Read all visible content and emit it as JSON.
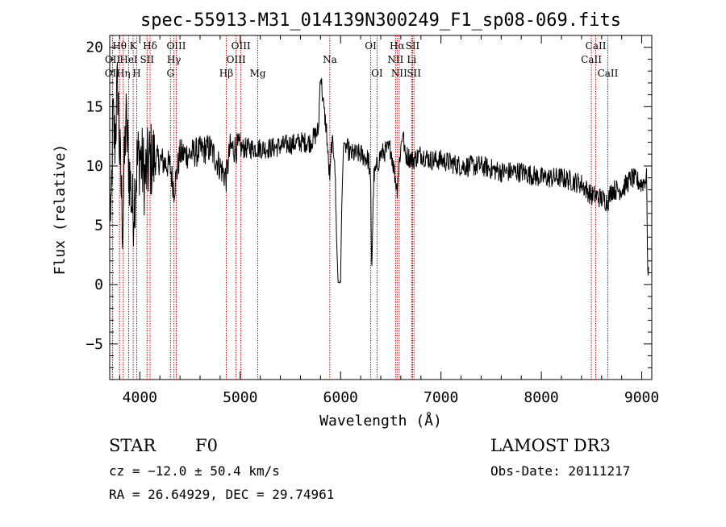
{
  "chart_data": {
    "type": "line",
    "title": "spec-55913-M31_014139N300249_F1_sp08-069.fits",
    "xlabel": "Wavelength (Å)",
    "ylabel": "Flux (relative)",
    "xlim": [
      3700,
      9100
    ],
    "ylim": [
      -8,
      21
    ],
    "xticks": [
      4000,
      5000,
      6000,
      7000,
      8000,
      9000
    ],
    "yticks": [
      -5,
      0,
      5,
      10,
      15,
      20
    ],
    "line_color": "#000000",
    "marker_color": "#cc0000",
    "spectrum_anchors": [
      [
        3700,
        10
      ],
      [
        3710,
        3
      ],
      [
        3730,
        14
      ],
      [
        3750,
        12
      ],
      [
        3780,
        17
      ],
      [
        3800,
        11
      ],
      [
        3830,
        5
      ],
      [
        3860,
        14
      ],
      [
        3900,
        9
      ],
      [
        3930,
        6
      ],
      [
        3970,
        10
      ],
      [
        4000,
        11
      ],
      [
        4050,
        9
      ],
      [
        4100,
        10.5
      ],
      [
        4200,
        10.5
      ],
      [
        4300,
        10
      ],
      [
        4340,
        8
      ],
      [
        4400,
        11
      ],
      [
        4500,
        11
      ],
      [
        4700,
        11.5
      ],
      [
        4860,
        9
      ],
      [
        4900,
        11.5
      ],
      [
        5100,
        11.5
      ],
      [
        5300,
        11.5
      ],
      [
        5600,
        12
      ],
      [
        5700,
        12
      ],
      [
        5780,
        13
      ],
      [
        5800,
        18
      ],
      [
        5830,
        15
      ],
      [
        5860,
        13
      ],
      [
        5880,
        10
      ],
      [
        5895,
        9
      ],
      [
        5910,
        12
      ],
      [
        5940,
        11
      ],
      [
        5960,
        4
      ],
      [
        5975,
        0.2
      ],
      [
        6000,
        0.2
      ],
      [
        6010,
        6
      ],
      [
        6030,
        12
      ],
      [
        6100,
        11
      ],
      [
        6200,
        11
      ],
      [
        6280,
        10.5
      ],
      [
        6300,
        8
      ],
      [
        6310,
        1
      ],
      [
        6330,
        9
      ],
      [
        6400,
        11
      ],
      [
        6500,
        11.5
      ],
      [
        6563,
        8
      ],
      [
        6580,
        10
      ],
      [
        6620,
        13
      ],
      [
        6640,
        11
      ],
      [
        6720,
        10.5
      ],
      [
        6800,
        11
      ],
      [
        6900,
        10.5
      ],
      [
        7000,
        10.5
      ],
      [
        7200,
        10
      ],
      [
        7400,
        10
      ],
      [
        7600,
        9.5
      ],
      [
        7800,
        9.5
      ],
      [
        8000,
        9
      ],
      [
        8200,
        9
      ],
      [
        8400,
        8.5
      ],
      [
        8498,
        7.5
      ],
      [
        8542,
        7.5
      ],
      [
        8662,
        7
      ],
      [
        8700,
        8
      ],
      [
        8800,
        8
      ],
      [
        8900,
        9
      ],
      [
        9000,
        8.5
      ],
      [
        9050,
        9
      ],
      [
        9060,
        1
      ],
      [
        9070,
        0.5
      ]
    ],
    "emission_lines": [
      {
        "label": "OII",
        "wavelength": 3727,
        "row": 2
      },
      {
        "label": "Hθ",
        "wavelength": 3798,
        "row": 0
      },
      {
        "label": "OII",
        "wavelength": 3729,
        "row": 1
      },
      {
        "label": "Hη",
        "wavelength": 3835,
        "row": 2
      },
      {
        "label": "HeI",
        "wavelength": 3889,
        "row": 1
      },
      {
        "label": "K",
        "wavelength": 3934,
        "row": 0
      },
      {
        "label": "H",
        "wavelength": 3969,
        "row": 2
      },
      {
        "label": "SII",
        "wavelength": 4072,
        "row": 1
      },
      {
        "label": "Hδ",
        "wavelength": 4102,
        "row": 0
      },
      {
        "label": "OIII",
        "wavelength": 4363,
        "row": 0
      },
      {
        "label": "Hγ",
        "wavelength": 4340,
        "row": 1
      },
      {
        "label": "G",
        "wavelength": 4305,
        "row": 2
      },
      {
        "label": "Hβ",
        "wavelength": 4861,
        "row": 2
      },
      {
        "label": "OIII",
        "wavelength": 4959,
        "row": 1
      },
      {
        "label": "OIII",
        "wavelength": 5007,
        "row": 0
      },
      {
        "label": "Mg",
        "wavelength": 5175,
        "row": 2
      },
      {
        "label": "Na",
        "wavelength": 5893,
        "row": 1
      },
      {
        "label": "OI",
        "wavelength": 6300,
        "row": 0
      },
      {
        "label": "OI",
        "wavelength": 6363,
        "row": 2
      },
      {
        "label": "Hα",
        "wavelength": 6563,
        "row": 0
      },
      {
        "label": "NII",
        "wavelength": 6548,
        "row": 1
      },
      {
        "label": "NII",
        "wavelength": 6584,
        "row": 2
      },
      {
        "label": "SII",
        "wavelength": 6717,
        "row": 0
      },
      {
        "label": "Li",
        "wavelength": 6708,
        "row": 1
      },
      {
        "label": "SII",
        "wavelength": 6731,
        "row": 2
      },
      {
        "label": "CaII",
        "wavelength": 8542,
        "row": 0
      },
      {
        "label": "CaII",
        "wavelength": 8498,
        "row": 1
      },
      {
        "label": "CaII",
        "wavelength": 8662,
        "row": 2
      }
    ]
  },
  "info": {
    "object_class": "STAR",
    "subclass": "F0",
    "survey": "LAMOST DR3",
    "redshift": "cz = −12.0 ± 50.4 km/s",
    "obs_date": "Obs-Date: 20111217",
    "coords": "RA =  26.64929, DEC =  29.74961"
  }
}
